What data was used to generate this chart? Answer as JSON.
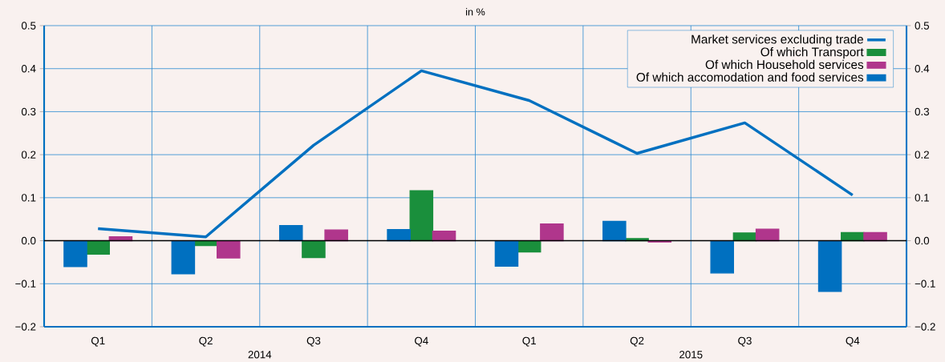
{
  "chart_data": {
    "type": "bar",
    "title": "in %",
    "categories": [
      "Q1",
      "Q2",
      "Q3",
      "Q4",
      "Q1",
      "Q2",
      "Q3",
      "Q4"
    ],
    "annotations": [
      "2014",
      "2015"
    ],
    "series": [
      {
        "name": "Market services excluding trade",
        "type": "line",
        "color": "#0070c0",
        "values": [
          0.028,
          0.009,
          0.222,
          0.395,
          0.326,
          0.203,
          0.274,
          0.106
        ]
      },
      {
        "name": "Of which Transport",
        "color": "#1a8f3c",
        "values": [
          -0.031,
          -0.011,
          -0.039,
          0.116,
          -0.026,
          0.005,
          0.018,
          0.019
        ]
      },
      {
        "name": "Of which Household services",
        "color": "#b0368c",
        "values": [
          0.009,
          -0.04,
          0.025,
          0.022,
          0.039,
          -0.003,
          0.027,
          0.019
        ]
      },
      {
        "name": "Of which accomodation and food services",
        "color": "#0070c0",
        "values": [
          -0.06,
          -0.077,
          0.035,
          0.026,
          -0.059,
          0.045,
          -0.075,
          -0.118
        ]
      }
    ],
    "ylim": [
      -0.2,
      0.5
    ],
    "yticks": [
      {
        "value": -0.2,
        "label": "−0.2"
      },
      {
        "value": -0.1,
        "label": "−0.1"
      },
      {
        "value": 0,
        "label": "0.0"
      },
      0.1,
      0.2,
      0.3,
      0.4,
      0.5
    ],
    "y2lim": [
      -0.2,
      0.5
    ],
    "y2ticks": [
      {
        "value": -0.2,
        "label": "−0.2"
      },
      {
        "value": -0.1,
        "label": "−0.1"
      },
      {
        "value": 0,
        "label": "0.0"
      },
      0.1,
      0.2,
      0.3,
      0.4,
      0.5
    ],
    "ref_lines": [
      {
        "axis": "y",
        "value": 0,
        "color": "#000000"
      }
    ],
    "grid": true,
    "legend": "top right"
  }
}
